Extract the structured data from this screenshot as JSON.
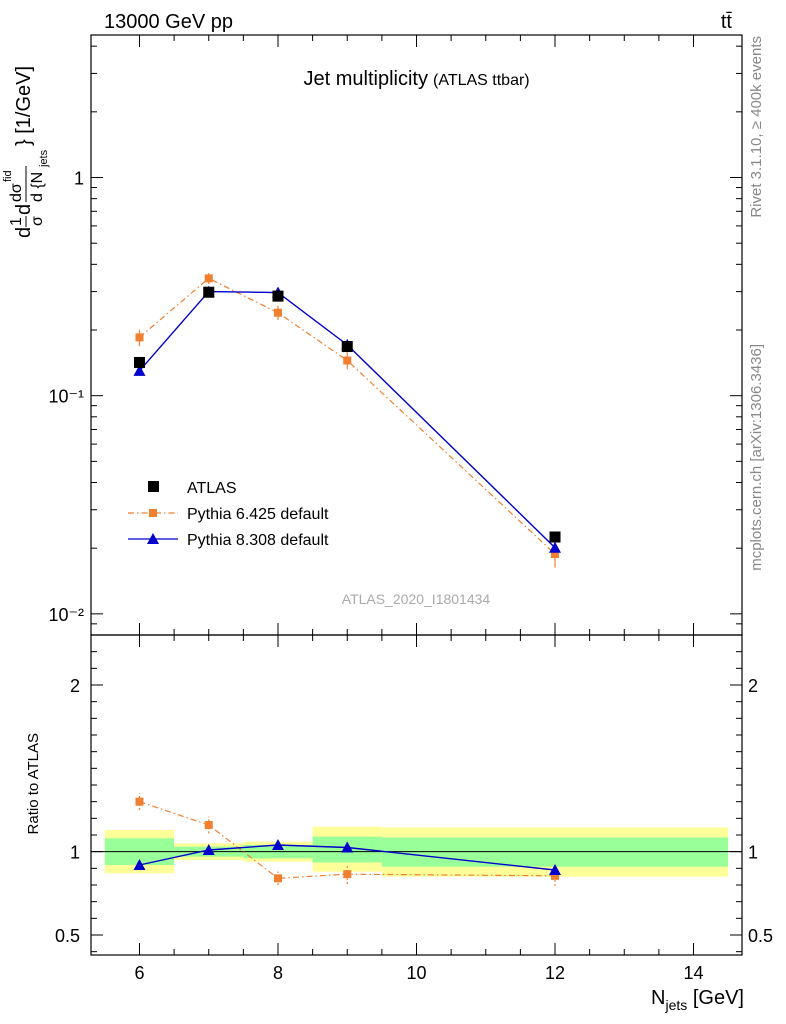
{
  "header": {
    "energy_label": "13000 GeV pp",
    "process_label": "tt̄"
  },
  "side_text": {
    "rivet": "Rivet 3.1.10, ≥ 400k events",
    "mcplots": "mcplots.cern.ch [arXiv:1306.3436]"
  },
  "chart_data": [
    {
      "type": "line",
      "title": "Jet multiplicity",
      "subtitle": "(ATLAS ttbar)",
      "watermark": "ATLAS_2020_I1801434",
      "xlabel": "N_jets [GeV]",
      "ylabel": "d(1/σ)dσ^fid/d{N_jets} [1/GeV]",
      "yscale": "log",
      "xlim": [
        5.3,
        14.7
      ],
      "ylim": [
        0.008,
        4.5
      ],
      "x_ticks": [
        "6",
        "8",
        "10",
        "12",
        "14"
      ],
      "y_tick_labels": [
        {
          "value": 1,
          "label": "1"
        },
        {
          "value": 0.1,
          "label": "10⁻¹"
        },
        {
          "value": 0.01,
          "label": "10⁻²"
        }
      ],
      "legend": {
        "placement": "lower-left",
        "entries": [
          "ATLAS",
          "Pythia 6.425 default",
          "Pythia 8.308 default"
        ]
      },
      "series": [
        {
          "name": "ATLAS",
          "marker": "square",
          "color": "#000000",
          "x": [
            6,
            7,
            8,
            9,
            12
          ],
          "y": [
            0.142,
            0.298,
            0.286,
            0.168,
            0.0225
          ]
        },
        {
          "name": "Pythia 6.425 default",
          "marker": "square",
          "line": "dash-dot",
          "color": "#f08030",
          "x": [
            6,
            7,
            8,
            9,
            12
          ],
          "y": [
            0.185,
            0.345,
            0.24,
            0.145,
            0.0188
          ],
          "err": [
            0.016,
            0.02,
            0.018,
            0.013,
            0.0025
          ]
        },
        {
          "name": "Pythia 8.308 default",
          "marker": "triangle",
          "line": "solid",
          "color": "#0000cc",
          "x": [
            6,
            7,
            8,
            9,
            12
          ],
          "y": [
            0.13,
            0.3,
            0.297,
            0.171,
            0.0201
          ],
          "err": [
            0.004,
            0.006,
            0.006,
            0.005,
            0.001
          ]
        }
      ]
    },
    {
      "type": "line",
      "ylabel": "Ratio to ATLAS",
      "xlabel": "N_jets [GeV]",
      "xlim": [
        5.3,
        14.7
      ],
      "ylim": [
        0.38,
        2.3
      ],
      "y_ticks": [
        "0.5",
        "1",
        "2"
      ],
      "reference_line": 1,
      "uncertainty_bands": [
        {
          "x_low": 5.5,
          "x_high": 6.5,
          "inner": [
            0.92,
            1.08
          ],
          "outer": [
            0.87,
            1.13
          ]
        },
        {
          "x_low": 6.5,
          "x_high": 7.5,
          "inner": [
            0.97,
            1.03
          ],
          "outer": [
            0.95,
            1.05
          ]
        },
        {
          "x_low": 7.5,
          "x_high": 8.5,
          "inner": [
            0.96,
            1.04
          ],
          "outer": [
            0.94,
            1.06
          ]
        },
        {
          "x_low": 8.5,
          "x_high": 9.5,
          "inner": [
            0.935,
            1.09
          ],
          "outer": [
            0.88,
            1.15
          ]
        },
        {
          "x_low": 9.5,
          "x_high": 14.5,
          "inner": [
            0.91,
            1.085
          ],
          "outer": [
            0.85,
            1.145
          ]
        }
      ],
      "series": [
        {
          "name": "Pythia 6.425 default",
          "x": [
            6,
            7,
            8,
            9,
            12
          ],
          "y": [
            1.3,
            1.16,
            0.84,
            0.865,
            0.855
          ],
          "err": [
            0.05,
            0.05,
            0.04,
            0.06,
            0.06
          ]
        },
        {
          "name": "Pythia 8.308 default",
          "x": [
            6,
            7,
            8,
            9,
            12
          ],
          "y": [
            0.92,
            1.01,
            1.04,
            1.025,
            0.89
          ],
          "err": [
            0.025,
            0.02,
            0.02,
            0.025,
            0.03
          ]
        }
      ]
    }
  ]
}
